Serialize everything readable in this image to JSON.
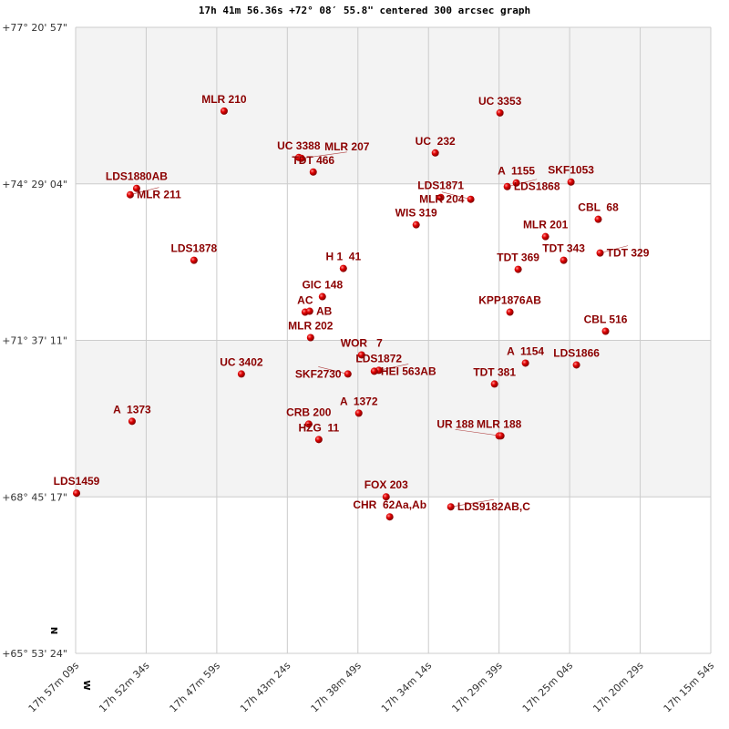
{
  "title": "17h 41m 56.36s +72° 08′ 55.8\" centered 300 arcsec graph",
  "chart_data": {
    "type": "scatter",
    "title": "17h 41m 56.36s +72° 08′ 55.8\" centered 300 arcsec graph",
    "xlabel": "",
    "ylabel": "",
    "x_quantity": "right ascension (hours, decreasing to the right)",
    "y_quantity": "declination (degrees)",
    "xlim": [
      17.9525,
      17.265
    ],
    "ylim": [
      65.89,
      77.3492
    ],
    "x_ticks": [
      "17h 57m 09s",
      "17h 52m 34s",
      "17h 47m 59s",
      "17h 43m 24s",
      "17h 38m 49s",
      "17h 34m 14s",
      "17h 29m 39s",
      "17h 25m 04s",
      "17h 20m 29s",
      "17h 15m 54s"
    ],
    "y_ticks": [
      "+77° 20' 57\"",
      "+74° 29' 04\"",
      "+71° 37' 11\"",
      "+68° 45' 17\"",
      "+65° 53' 24\""
    ],
    "grid": true,
    "compass": {
      "north": "N",
      "west": "W"
    },
    "colors": {
      "point": "#dd0000",
      "label": "#8b0000",
      "band": "#f3f3f3",
      "grid": "#cccccc"
    },
    "points": [
      {
        "name": "MLR 210",
        "ra": 17.7918,
        "dec": 75.8169
      },
      {
        "name": "UC 3353",
        "ra": 17.4932,
        "dec": 75.7836
      },
      {
        "name": "UC 3388",
        "ra": 17.711,
        "dec": 74.9675
      },
      {
        "name": "MLR 207",
        "ra": 17.7081,
        "dec": 74.9509
      },
      {
        "name": "TDT 466",
        "ra": 17.6953,
        "dec": 74.7011
      },
      {
        "name": "UC  232",
        "ra": 17.5632,
        "dec": 75.0508
      },
      {
        "name": "LDS1880AB",
        "ra": 17.8865,
        "dec": 74.4013
      },
      {
        "name": "MLR 211",
        "ra": 17.8934,
        "dec": 74.2847
      },
      {
        "name": "A  1155",
        "ra": 17.4755,
        "dec": 74.5012
      },
      {
        "name": "LDS1868",
        "ra": 17.4853,
        "dec": 74.4346
      },
      {
        "name": "SKF1053",
        "ra": 17.4163,
        "dec": 74.5178
      },
      {
        "name": "LDS1871",
        "ra": 17.5573,
        "dec": 74.2347
      },
      {
        "name": "MLR 204",
        "ra": 17.5248,
        "dec": 74.2014
      },
      {
        "name": "WIS 319",
        "ra": 17.5839,
        "dec": 73.7351
      },
      {
        "name": "CBL  68",
        "ra": 17.3868,
        "dec": 73.835
      },
      {
        "name": "MLR 201",
        "ra": 17.4439,
        "dec": 73.5185
      },
      {
        "name": "TDT 343",
        "ra": 17.4242,
        "dec": 73.0855
      },
      {
        "name": "TDT 329",
        "ra": 17.3848,
        "dec": 73.2188
      },
      {
        "name": "LDS1878",
        "ra": 17.8244,
        "dec": 73.0855
      },
      {
        "name": "H 1  41",
        "ra": 17.6627,
        "dec": 72.9356
      },
      {
        "name": "TDT 369",
        "ra": 17.4735,
        "dec": 72.919
      },
      {
        "name": "GIC 148",
        "ra": 17.6854,
        "dec": 72.4193
      },
      {
        "name": "AC",
        "ra": 17.7041,
        "dec": 72.1362
      },
      {
        "name": "AB",
        "ra": 17.6992,
        "dec": 72.1528
      },
      {
        "name": "KPP1876AB",
        "ra": 17.4824,
        "dec": 72.1362
      },
      {
        "name": "CBL 516",
        "ra": 17.3789,
        "dec": 71.7864
      },
      {
        "name": "MLR 202",
        "ra": 17.6982,
        "dec": 71.6698
      },
      {
        "name": "WOR   7",
        "ra": 17.643,
        "dec": 71.3534
      },
      {
        "name": "LDS1872",
        "ra": 17.6243,
        "dec": 71.0703
      },
      {
        "name": "HEI 563AB",
        "ra": 17.6292,
        "dec": 71.0536
      },
      {
        "name": "SKF2730",
        "ra": 17.6578,
        "dec": 71.0036
      },
      {
        "name": "A  1154",
        "ra": 17.4656,
        "dec": 71.2035
      },
      {
        "name": "LDS1866",
        "ra": 17.4104,
        "dec": 71.1702
      },
      {
        "name": "UC 3402",
        "ra": 17.7731,
        "dec": 71.0036
      },
      {
        "name": "TDT 381",
        "ra": 17.4991,
        "dec": 70.8204
      },
      {
        "name": "A  1372",
        "ra": 17.646,
        "dec": 70.2875
      },
      {
        "name": "A  1373",
        "ra": 17.8914,
        "dec": 70.1376
      },
      {
        "name": "CRB 200",
        "ra": 17.7002,
        "dec": 70.0876
      },
      {
        "name": "HZG  11",
        "ra": 17.6893,
        "dec": 69.8045
      },
      {
        "name": "MLR 188",
        "ra": 17.4942,
        "dec": 69.8711
      },
      {
        "name": "UR 188",
        "ra": 17.4922,
        "dec": 69.8711
      },
      {
        "name": "LDS1459",
        "ra": 17.9515,
        "dec": 68.8218
      },
      {
        "name": "FOX 203",
        "ra": 17.6164,
        "dec": 68.7552
      },
      {
        "name": "CHR  62Aa,Ab",
        "ra": 17.6125,
        "dec": 68.3888
      },
      {
        "name": "LDS9182AB,C",
        "ra": 17.5464,
        "dec": 68.572
      }
    ]
  }
}
